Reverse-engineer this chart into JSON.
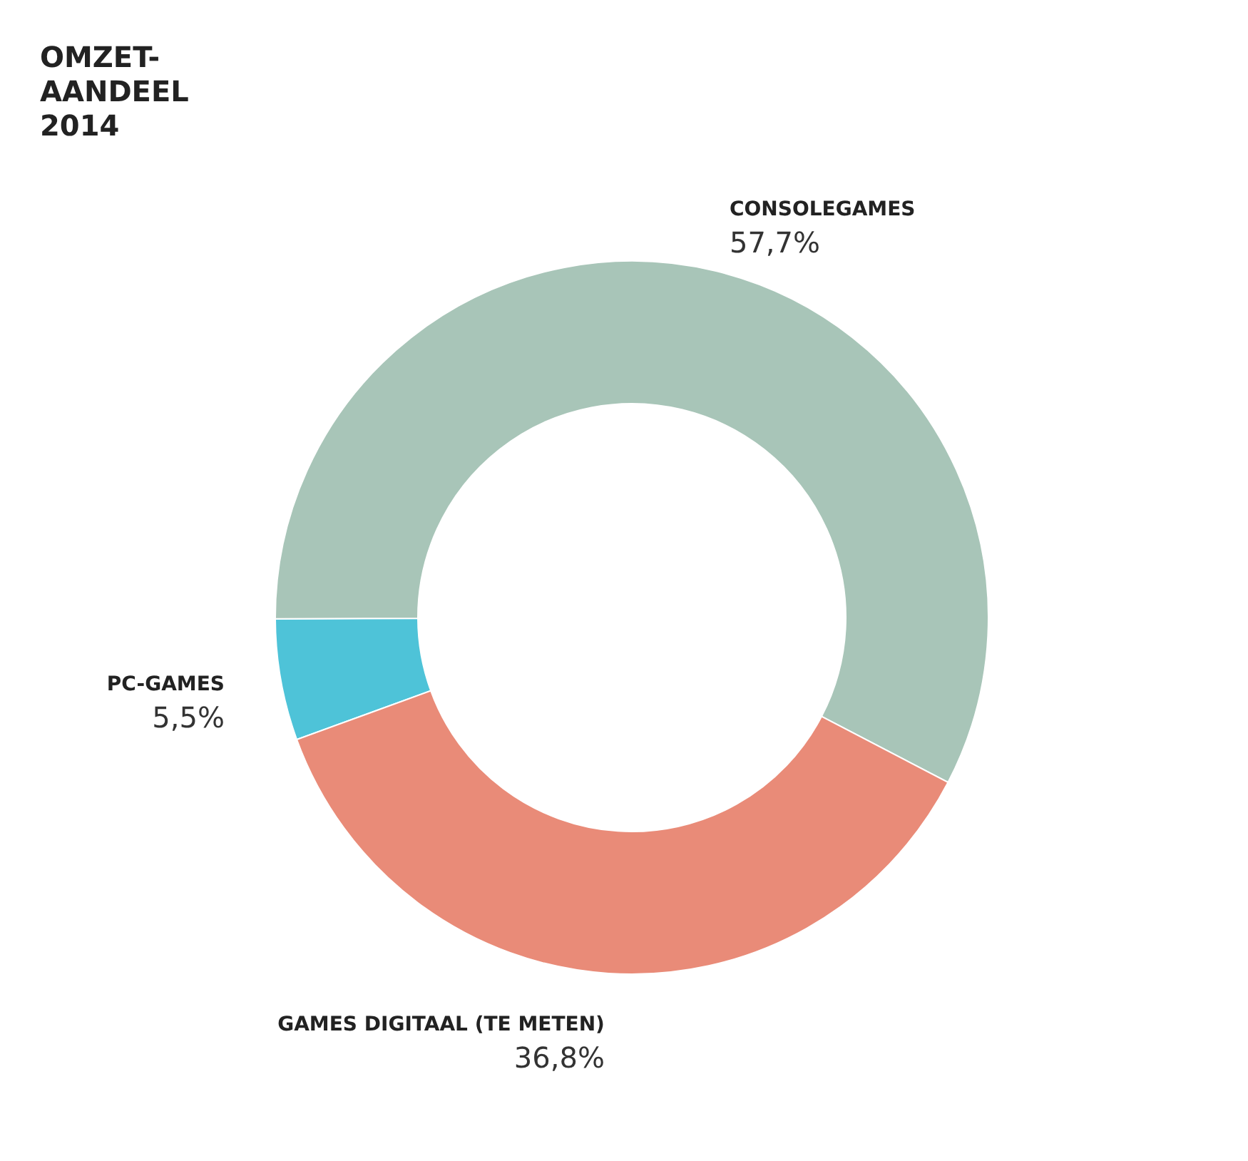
{
  "chart_data": {
    "type": "donut",
    "title": "OMZET-AANDEEL 2014",
    "categories": [
      "PC-GAMES",
      "CONSOLEGAMES",
      "GAMES DIGITAAL (TE METEN)"
    ],
    "values": [
      5.5,
      57.7,
      36.8
    ],
    "value_labels": [
      "5,5%",
      "57,7%",
      "36,8%"
    ],
    "colors": [
      "#4ec3d8",
      "#a8c5b8",
      "#e98b78"
    ],
    "legend": false
  }
}
